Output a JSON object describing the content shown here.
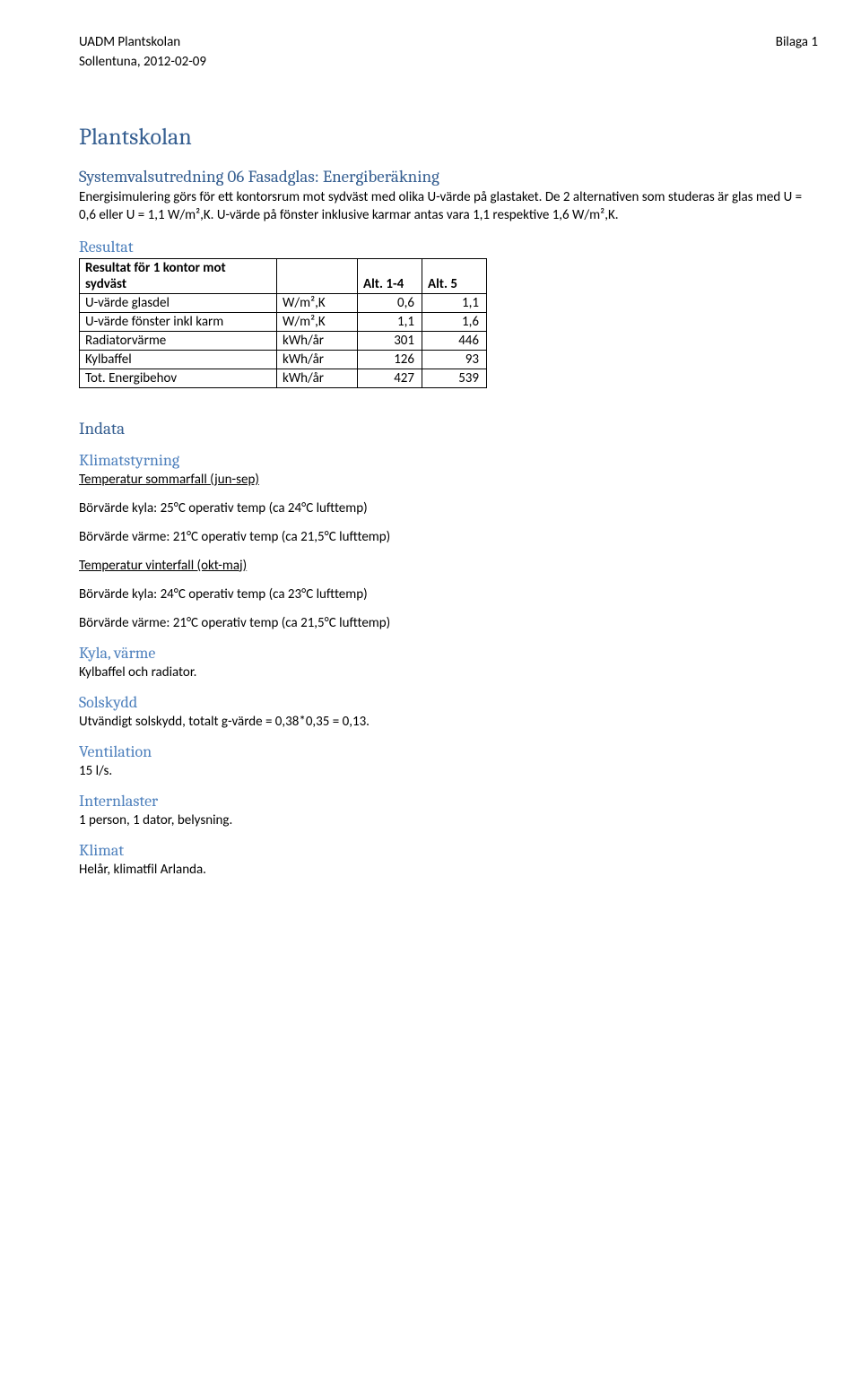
{
  "header": {
    "left": "UADM Plantskolan",
    "right": "Bilaga 1",
    "date": "Sollentuna, 2012-02-09"
  },
  "title": "Plantskolan",
  "subtitle": "Systemvalsutredning 06 Fasadglas: Energiberäkning",
  "intro": "Energisimulering görs för ett kontorsrum mot sydväst med olika U-värde på glastaket. De 2 alternativen som studeras är glas med U = 0,6 eller U = 1,1 W/m²,K. U-värde på fönster inklusive karmar antas vara 1,1 respektive 1,6 W/m²,K.",
  "resultat_heading": "Resultat",
  "table": {
    "head": {
      "c0": "Resultat för 1 kontor mot sydväst",
      "c1": "",
      "c2": "Alt. 1-4",
      "c3": "Alt. 5"
    },
    "rows": [
      {
        "label": "U-värde glasdel",
        "unit": "W/m²,K",
        "a": "0,6",
        "b": "1,1"
      },
      {
        "label": "U-värde fönster inkl karm",
        "unit": "W/m²,K",
        "a": "1,1",
        "b": "1,6"
      },
      {
        "label": "Radiatorvärme",
        "unit": "kWh/år",
        "a": "301",
        "b": "446"
      },
      {
        "label": "Kylbaffel",
        "unit": "kWh/år",
        "a": "126",
        "b": "93"
      },
      {
        "label": "Tot. Energibehov",
        "unit": "kWh/år",
        "a": "427",
        "b": "539"
      }
    ]
  },
  "indata_heading": "Indata",
  "sections": [
    {
      "type": "h",
      "value": "Klimatstyrning"
    },
    {
      "type": "u",
      "value": "Temperatur sommarfall (jun-sep)"
    },
    {
      "type": "p",
      "value": "Börvärde kyla: 25°C operativ temp (ca 24°C lufttemp)"
    },
    {
      "type": "p",
      "value": "Börvärde värme: 21°C operativ temp (ca 21,5°C lufttemp)"
    },
    {
      "type": "u",
      "value": "Temperatur vinterfall (okt-maj)"
    },
    {
      "type": "p",
      "value": "Börvärde kyla: 24°C operativ temp (ca 23°C lufttemp)"
    },
    {
      "type": "p",
      "value": "Börvärde värme: 21°C operativ temp (ca 21,5°C lufttemp)"
    },
    {
      "type": "h",
      "value": "Kyla, värme"
    },
    {
      "type": "pline",
      "value": "Kylbaffel och radiator."
    },
    {
      "type": "h",
      "value": "Solskydd"
    },
    {
      "type": "pline",
      "value": "Utvändigt solskydd, totalt g-värde = 0,38*0,35 = 0,13."
    },
    {
      "type": "h",
      "value": "Ventilation"
    },
    {
      "type": "pline",
      "value": "15 l/s."
    },
    {
      "type": "h",
      "value": "Internlaster"
    },
    {
      "type": "pline",
      "value": "1 person, 1 dator, belysning."
    },
    {
      "type": "h",
      "value": "Klimat"
    },
    {
      "type": "pline",
      "value": "Helår, klimatfil Arlanda."
    }
  ]
}
